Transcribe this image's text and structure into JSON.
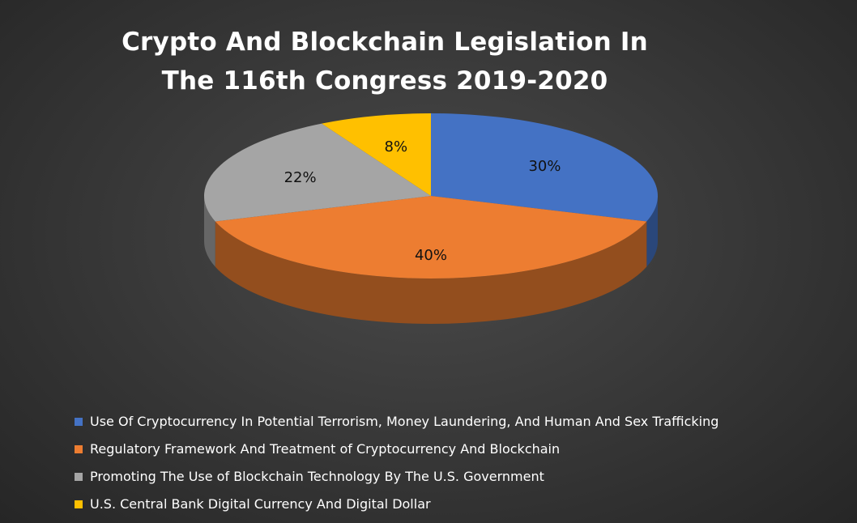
{
  "chart_data": {
    "type": "pie",
    "title_lines": [
      "Crypto And Blockchain Legislation In",
      "The 116th Congress 2019-2020"
    ],
    "slices": [
      {
        "label": "Use Of Cryptocurrency In Potential Terrorism, Money Laundering, And Human And Sex Trafficking",
        "value": 30,
        "value_label": "30%",
        "color": "#4472C4"
      },
      {
        "label": "Regulatory Framework And Treatment of Cryptocurrency And Blockchain",
        "value": 40,
        "value_label": "40%",
        "color": "#ED7D31"
      },
      {
        "label": "Promoting The Use of Blockchain Technology By The U.S. Government",
        "value": 22,
        "value_label": "22%",
        "color": "#A5A5A5"
      },
      {
        "label": "U.S. Central Bank Digital Currency And Digital Dollar",
        "value": 8,
        "value_label": "8%",
        "color": "#FFC000"
      }
    ],
    "legend_position": "bottom",
    "style": "3d-pie"
  }
}
